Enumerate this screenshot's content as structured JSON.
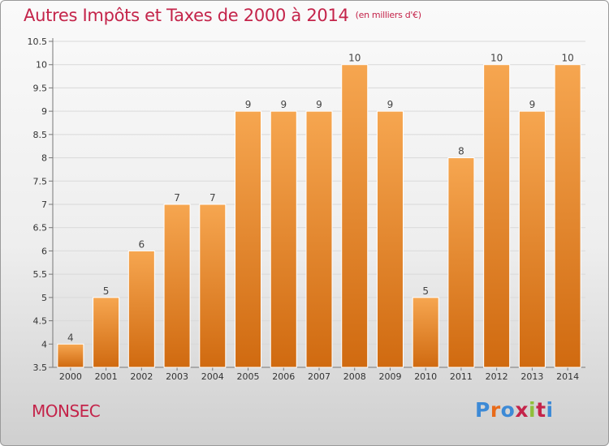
{
  "chart_data": {
    "type": "bar",
    "title": "Autres Impôts et Taxes de 2000 à 2014",
    "unit_label": "(en milliers d'€)",
    "categories": [
      "2000",
      "2001",
      "2002",
      "2003",
      "2004",
      "2005",
      "2006",
      "2007",
      "2008",
      "2009",
      "2010",
      "2011",
      "2012",
      "2013",
      "2014"
    ],
    "values": [
      4,
      5,
      6,
      7,
      7,
      9,
      9,
      9,
      10,
      9,
      5,
      8,
      10,
      9,
      10
    ],
    "data_labels": [
      "4",
      "5",
      "6",
      "7",
      "7",
      "9",
      "9",
      "9",
      "10",
      "9",
      "5",
      "8",
      "10",
      "9",
      "10"
    ],
    "ylim": [
      3.5,
      10.5
    ],
    "yticks": [
      "3.5",
      "4",
      "4.5",
      "5",
      "5.5",
      "6",
      "6.5",
      "7",
      "7.5",
      "8",
      "8.5",
      "9",
      "9.5",
      "10",
      "10.5"
    ],
    "xlabel": "",
    "ylabel": "",
    "grid": true,
    "legend": "none",
    "colors": {
      "bar_top": "#f6a650",
      "bar_bottom": "#d06a10",
      "bar_edge": "#ffffff"
    }
  },
  "footer": {
    "town": "MONSEC",
    "logo": "Proxiti"
  },
  "colors": {
    "title": "#c4244a",
    "logo": [
      "#3d8ad6",
      "#e86b1a",
      "#3d8ad6",
      "#c4244a",
      "#8fbf3a",
      "#c4244a",
      "#3d8ad6"
    ]
  }
}
